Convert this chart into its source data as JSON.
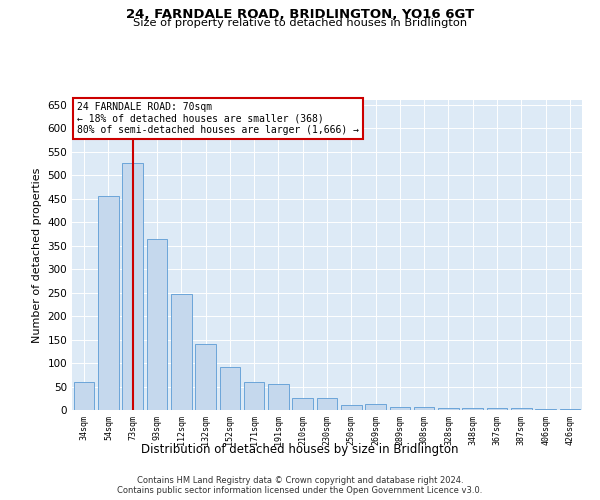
{
  "title": "24, FARNDALE ROAD, BRIDLINGTON, YO16 6GT",
  "subtitle": "Size of property relative to detached houses in Bridlington",
  "xlabel": "Distribution of detached houses by size in Bridlington",
  "ylabel": "Number of detached properties",
  "categories": [
    "34sqm",
    "54sqm",
    "73sqm",
    "93sqm",
    "112sqm",
    "132sqm",
    "152sqm",
    "171sqm",
    "191sqm",
    "210sqm",
    "230sqm",
    "250sqm",
    "269sqm",
    "289sqm",
    "308sqm",
    "328sqm",
    "348sqm",
    "367sqm",
    "387sqm",
    "406sqm",
    "426sqm"
  ],
  "values": [
    60,
    455,
    525,
    365,
    248,
    140,
    92,
    60,
    55,
    25,
    25,
    10,
    12,
    7,
    6,
    5,
    5,
    5,
    5,
    3,
    3
  ],
  "bar_color": "#c5d8ed",
  "bar_edge_color": "#5b9bd5",
  "highlight_index": 2,
  "highlight_line_color": "#cc0000",
  "annotation_box_color": "#cc0000",
  "annotation_lines": [
    "24 FARNDALE ROAD: 70sqm",
    "← 18% of detached houses are smaller (368)",
    "80% of semi-detached houses are larger (1,666) →"
  ],
  "ylim": [
    0,
    660
  ],
  "yticks": [
    0,
    50,
    100,
    150,
    200,
    250,
    300,
    350,
    400,
    450,
    500,
    550,
    600,
    650
  ],
  "bg_color": "#ddeaf6",
  "footer_line1": "Contains HM Land Registry data © Crown copyright and database right 2024.",
  "footer_line2": "Contains public sector information licensed under the Open Government Licence v3.0."
}
